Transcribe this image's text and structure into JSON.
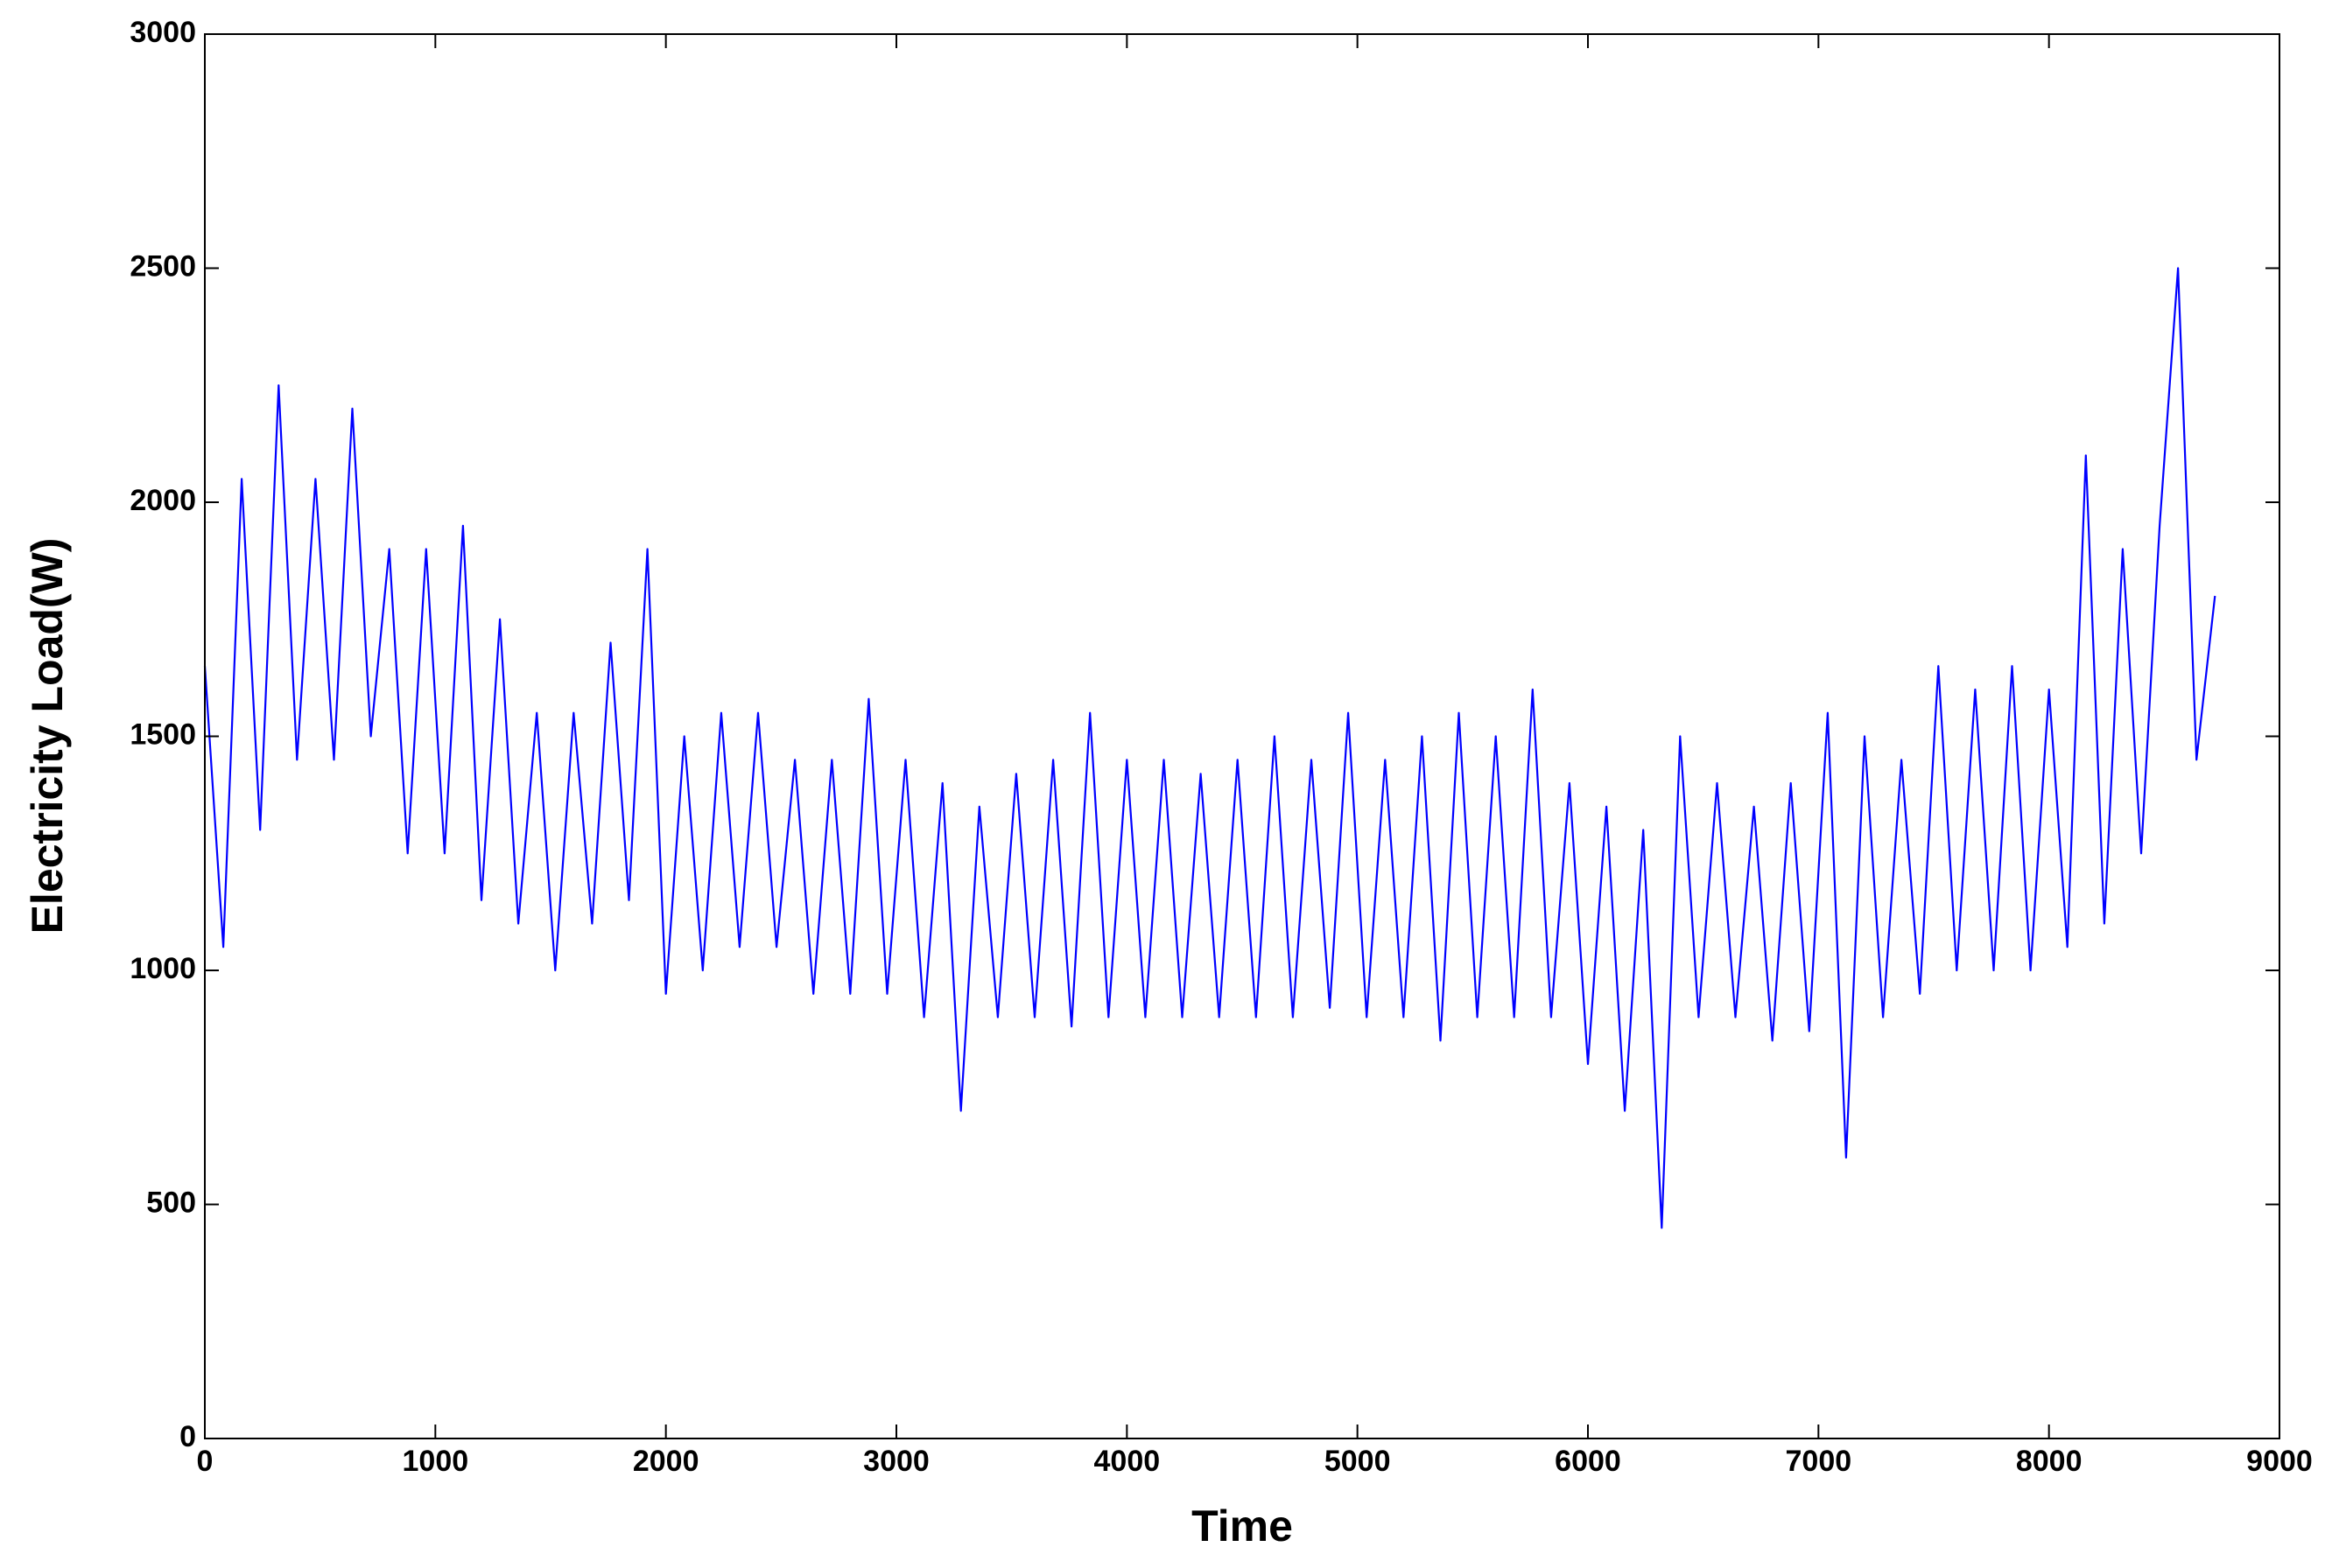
{
  "chart_data": {
    "type": "line",
    "xlabel": "Time",
    "ylabel": "Electricity Load(W)",
    "xlim": [
      0,
      9000
    ],
    "xticks": [
      0,
      1000,
      2000,
      3000,
      4000,
      5000,
      6000,
      7000,
      8000,
      9000
    ],
    "ylim": [
      0,
      3000
    ],
    "yticks": [
      0,
      500,
      1000,
      1500,
      2000,
      2500,
      3000
    ],
    "grid": false,
    "series": [
      {
        "color": "#0000ff",
        "x": [
          0,
          80,
          160,
          240,
          320,
          400,
          480,
          560,
          640,
          720,
          800,
          880,
          960,
          1040,
          1120,
          1200,
          1280,
          1360,
          1440,
          1520,
          1600,
          1680,
          1760,
          1840,
          1920,
          2000,
          2080,
          2160,
          2240,
          2320,
          2400,
          2480,
          2560,
          2640,
          2720,
          2800,
          2880,
          2960,
          3040,
          3120,
          3200,
          3280,
          3360,
          3440,
          3520,
          3600,
          3680,
          3760,
          3840,
          3920,
          4000,
          4080,
          4160,
          4240,
          4320,
          4400,
          4480,
          4560,
          4640,
          4720,
          4800,
          4880,
          4960,
          5040,
          5120,
          5200,
          5280,
          5360,
          5440,
          5520,
          5600,
          5680,
          5760,
          5840,
          5920,
          6000,
          6080,
          6160,
          6240,
          6320,
          6400,
          6480,
          6560,
          6640,
          6720,
          6800,
          6880,
          6960,
          7040,
          7120,
          7200,
          7280,
          7360,
          7440,
          7520,
          7600,
          7680,
          7760,
          7840,
          7920,
          8000,
          8080,
          8160,
          8240,
          8320,
          8400,
          8480,
          8560,
          8640,
          8720
        ],
        "values": [
          1650,
          1050,
          2050,
          1300,
          2250,
          1450,
          2050,
          1450,
          2200,
          1500,
          1900,
          1250,
          1900,
          1250,
          1950,
          1150,
          1750,
          1100,
          1550,
          1000,
          1550,
          1100,
          1700,
          1150,
          1900,
          950,
          1500,
          1000,
          1550,
          1050,
          1550,
          1050,
          1450,
          950,
          1450,
          950,
          1580,
          950,
          1450,
          900,
          1400,
          700,
          1350,
          900,
          1420,
          900,
          1450,
          880,
          1550,
          900,
          1450,
          900,
          1450,
          900,
          1420,
          900,
          1450,
          900,
          1500,
          900,
          1450,
          920,
          1550,
          900,
          1450,
          900,
          1500,
          850,
          1550,
          900,
          1500,
          900,
          1600,
          900,
          1400,
          800,
          1350,
          700,
          1300,
          450,
          1500,
          900,
          1400,
          900,
          1350,
          850,
          1400,
          870,
          1550,
          600,
          1500,
          900,
          1450,
          950,
          1650,
          1000,
          1600,
          1000,
          1650,
          1000,
          1600,
          1050,
          2100,
          1100,
          1900,
          1250,
          1950,
          2500,
          1450,
          1800
        ]
      }
    ]
  }
}
